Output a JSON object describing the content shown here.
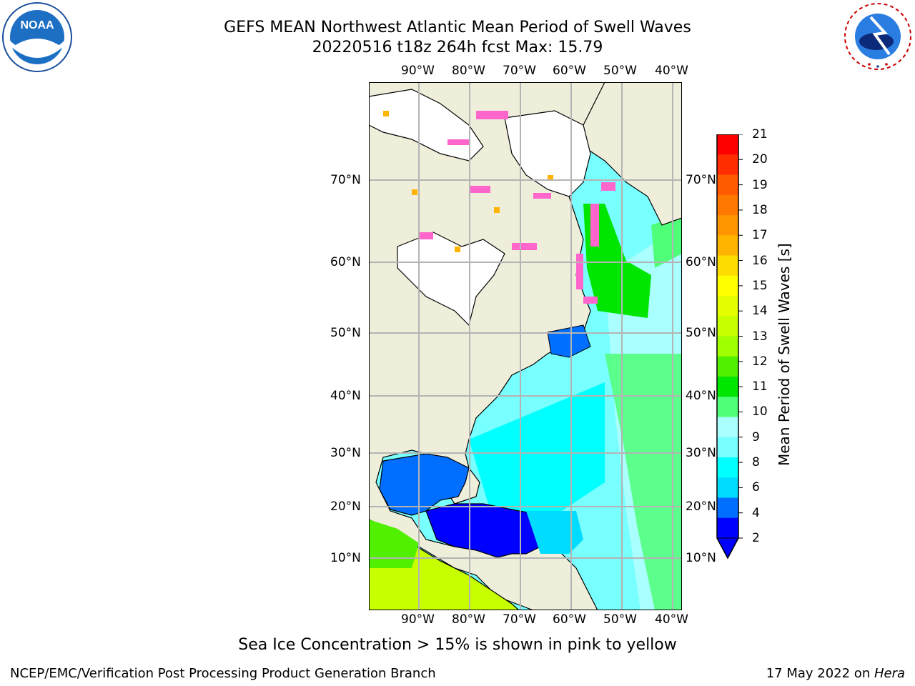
{
  "title": {
    "line1": "GEFS MEAN Northwest Atlantic Mean Period of Swell Waves",
    "line2": "20220516 t18z 264h fcst   Max: 15.79"
  },
  "logos": {
    "left": {
      "name": "noaa-logo",
      "text": "NOAA",
      "ring_text": "NATIONAL OCEANIC AND ATMOSPHERIC ADMINISTRATION · U.S. DEPARTMENT OF COMMERCE"
    },
    "right": {
      "name": "nws-logo",
      "ring_text": "NATIONAL WEATHER SERVICE"
    }
  },
  "map": {
    "lon_labels": [
      "90°W",
      "80°W",
      "70°W",
      "60°W",
      "50°W",
      "40°W"
    ],
    "lat_labels": [
      "70°N",
      "60°N",
      "50°N",
      "40°N",
      "30°N",
      "20°N",
      "10°N"
    ],
    "colors": {
      "land": "#efeedb",
      "ice_free_white": "#ffffff",
      "grid": "#b4b4b4",
      "coast": "#000000"
    }
  },
  "colorbar": {
    "title": "Mean Period of Swell Waves [s]",
    "ticks": [
      "21",
      "20",
      "19",
      "18",
      "17",
      "16",
      "15",
      "14",
      "13",
      "12",
      "11",
      "10",
      "9",
      "8",
      "6",
      "4",
      "2"
    ],
    "colors_top_to_bottom": [
      "#ff0000",
      "#ff2d00",
      "#ff5a00",
      "#ff7800",
      "#ff9600",
      "#ffb400",
      "#ffdc00",
      "#ffff00",
      "#e6ff00",
      "#c8ff00",
      "#a0ff00",
      "#50f000",
      "#00e600",
      "#50ff78",
      "#aaffff",
      "#78ffff",
      "#00ffff",
      "#00dcff",
      "#006eff",
      "#0000ff"
    ],
    "extend_min_color": "#0000ff"
  },
  "caption": "Sea Ice Concentration > 15% is shown in pink to yellow",
  "footer": {
    "left": "NCEP/EMC/Verification Post Processing Product Generation Branch",
    "right_prefix": "17 May 2022 on ",
    "right_italic": "Hera"
  }
}
